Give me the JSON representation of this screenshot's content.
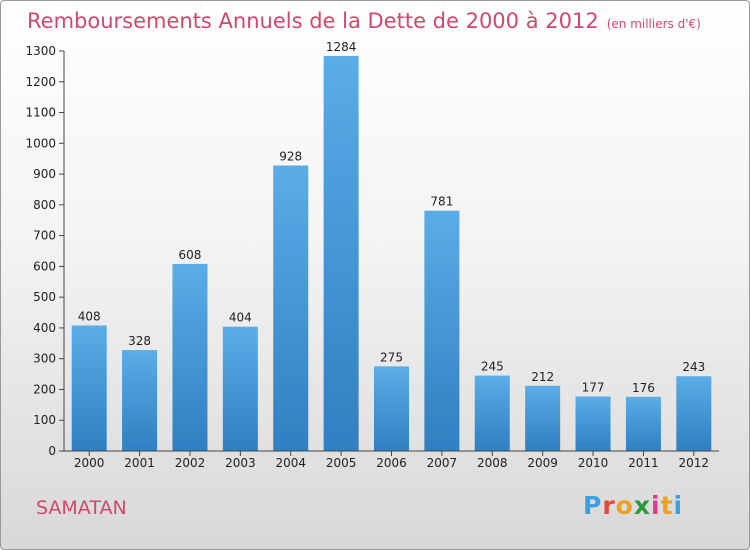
{
  "title": "Remboursements Annuels de la Dette de 2000 à 2012",
  "unit_note": "(en milliers d'€)",
  "commune": "SAMATAN",
  "logo": {
    "letters": [
      "P",
      "r",
      "o",
      "x",
      "i",
      "t",
      "i"
    ],
    "colors": [
      "#3aa0e0",
      "#e04a3a",
      "#f0a020",
      "#2a9a3a",
      "#e03a8a",
      "#f0a020",
      "#3aa0e0"
    ]
  },
  "colors": {
    "bar_top": "#5aade6",
    "bar_bottom": "#2f7fc2",
    "title": "#d2486a"
  },
  "chart_data": {
    "type": "bar",
    "categories": [
      "2000",
      "2001",
      "2002",
      "2003",
      "2004",
      "2005",
      "2006",
      "2007",
      "2008",
      "2009",
      "2010",
      "2011",
      "2012"
    ],
    "values": [
      408,
      328,
      608,
      404,
      928,
      1284,
      275,
      781,
      245,
      212,
      177,
      176,
      243
    ],
    "ylim": [
      0,
      1300
    ],
    "yticks": [
      0,
      100,
      200,
      300,
      400,
      500,
      600,
      700,
      800,
      900,
      1000,
      1100,
      1200,
      1300
    ],
    "grid": false
  }
}
